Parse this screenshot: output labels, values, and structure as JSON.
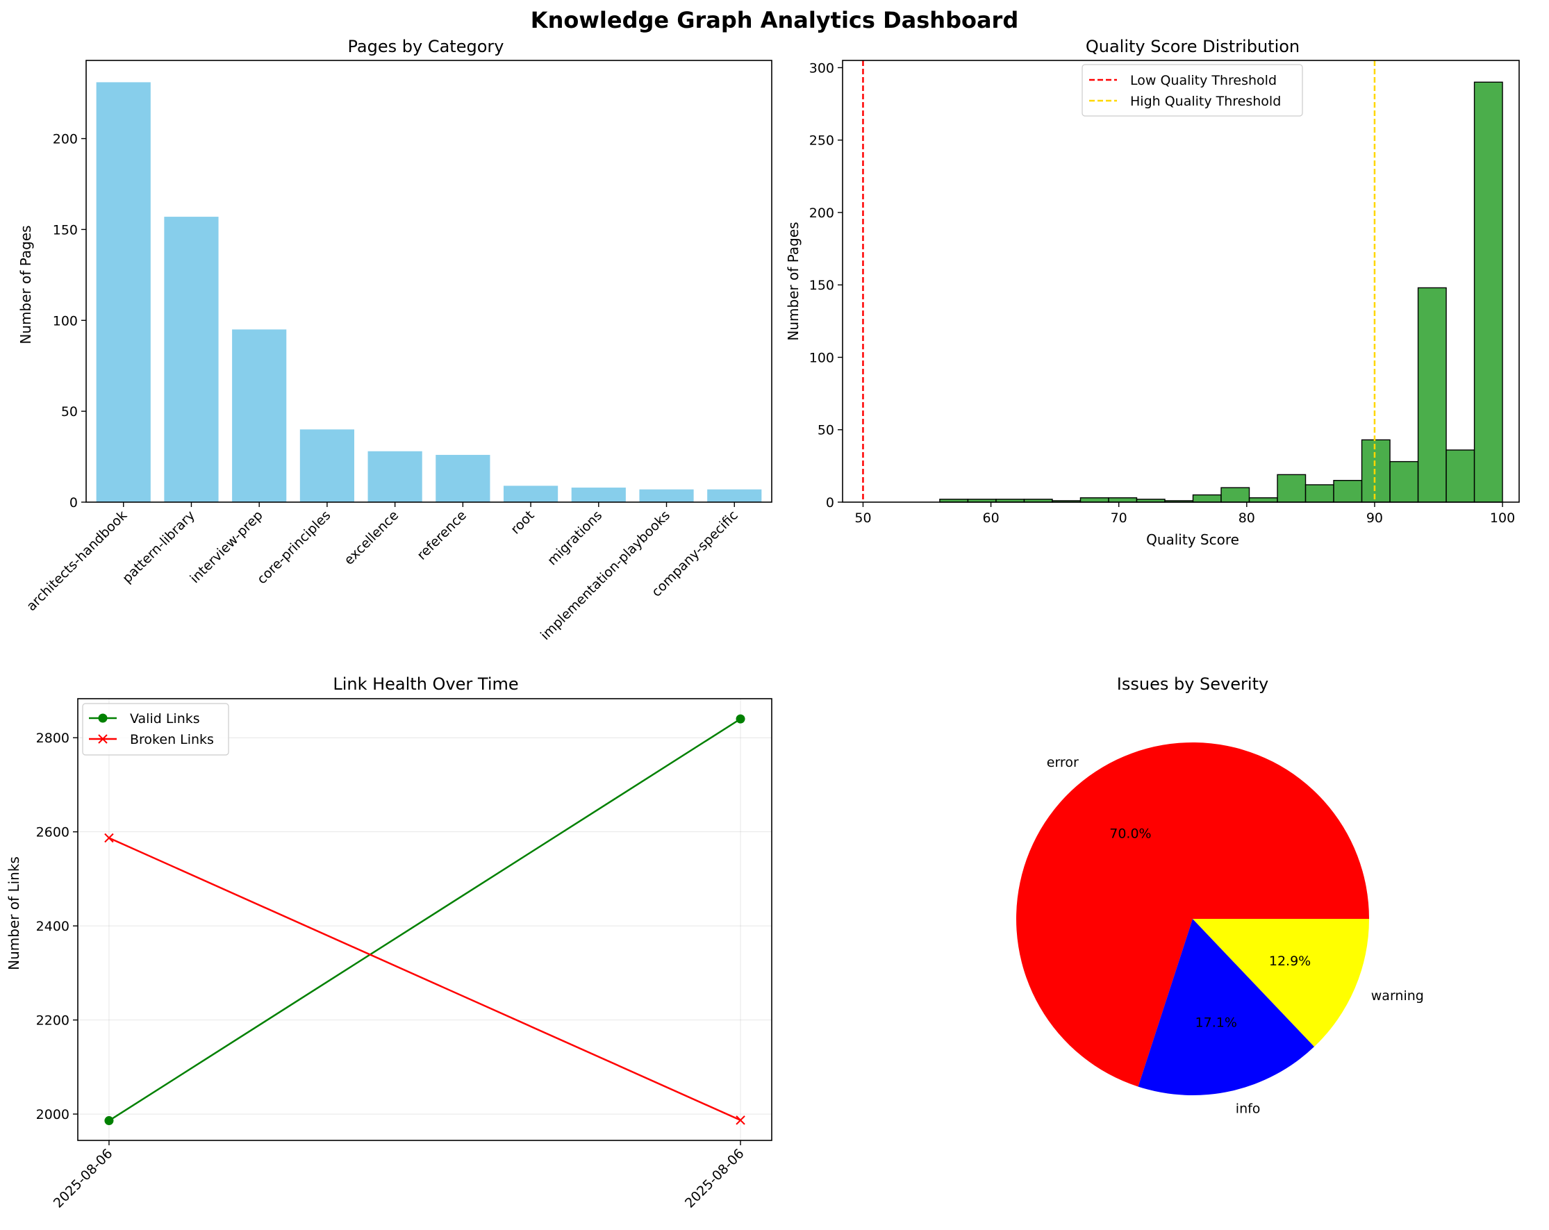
{
  "title": "Knowledge Graph Analytics Dashboard",
  "chart_data": [
    {
      "type": "bar",
      "title": "Pages by Category",
      "xlabel": "",
      "ylabel": "Number of Pages",
      "categories": [
        "architects-handbook",
        "pattern-library",
        "interview-prep",
        "core-principles",
        "excellence",
        "reference",
        "root",
        "migrations",
        "implementation-playbooks",
        "company-specific"
      ],
      "values": [
        231,
        157,
        95,
        40,
        28,
        26,
        9,
        8,
        7,
        7
      ],
      "ylim": [
        0,
        243
      ],
      "yticks": [
        0,
        50,
        100,
        150,
        200
      ],
      "color": "#87CEEB",
      "grid": false
    },
    {
      "type": "histogram",
      "title": "Quality Score Distribution",
      "xlabel": "Quality Score",
      "ylabel": "Number of Pages",
      "bin_start": 56,
      "bin_width": 2.2,
      "counts": [
        2,
        2,
        2,
        2,
        1,
        3,
        3,
        2,
        1,
        5,
        10,
        3,
        19,
        12,
        15,
        43,
        28,
        148,
        36,
        290
      ],
      "xlim": [
        48.4,
        101.3
      ],
      "ylim": [
        0,
        305
      ],
      "xticks": [
        50,
        60,
        70,
        80,
        90,
        100
      ],
      "yticks": [
        0,
        50,
        100,
        150,
        200,
        250,
        300
      ],
      "color": "#2ca02c",
      "edgecolor": "#000000",
      "thresholds": [
        {
          "name": "Low Quality Threshold",
          "value": 50,
          "color": "#ff0000"
        },
        {
          "name": "High Quality Threshold",
          "value": 90,
          "color": "#ffd700"
        }
      ],
      "legend_position": "top-center",
      "grid": false
    },
    {
      "type": "line",
      "title": "Link Health Over Time",
      "xlabel": "",
      "ylabel": "Number of Links",
      "x": [
        "2025-08-06",
        "2025-08-06"
      ],
      "series": [
        {
          "name": "Valid Links",
          "values": [
            1986,
            2840
          ],
          "color": "#008000",
          "marker": "circle"
        },
        {
          "name": "Broken Links",
          "values": [
            2587,
            1987
          ],
          "color": "#ff0000",
          "marker": "x"
        }
      ],
      "ylim": [
        1944,
        2883
      ],
      "yticks": [
        2000,
        2200,
        2400,
        2600,
        2800
      ],
      "legend_position": "top-left",
      "grid": true
    },
    {
      "type": "pie",
      "title": "Issues by Severity",
      "slices": [
        {
          "label": "error",
          "value": 70.0,
          "pct_label": "70.0%",
          "color": "#ff0000"
        },
        {
          "label": "info",
          "value": 17.1,
          "pct_label": "17.1%",
          "color": "#0000ff"
        },
        {
          "label": "warning",
          "value": 12.9,
          "pct_label": "12.9%",
          "color": "#ffff00"
        }
      ]
    }
  ]
}
